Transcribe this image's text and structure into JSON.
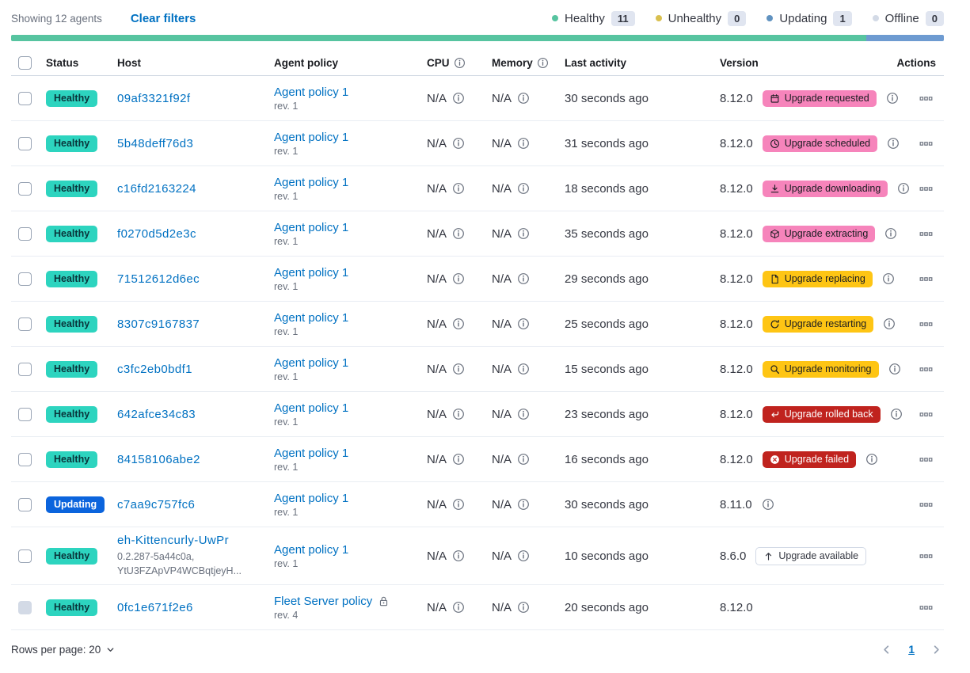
{
  "toolbar": {
    "showing": "Showing 12 agents",
    "clear_filters": "Clear filters"
  },
  "legend": {
    "items": [
      {
        "label": "Healthy",
        "count": "11",
        "color": "#57c4a0"
      },
      {
        "label": "Unhealthy",
        "count": "0",
        "color": "#d9c04f"
      },
      {
        "label": "Updating",
        "count": "1",
        "color": "#6092c0"
      },
      {
        "label": "Offline",
        "count": "0",
        "color": "#d3dae6"
      }
    ]
  },
  "status_bar": {
    "segments": [
      {
        "status": "Healthy",
        "percent": 91.67,
        "color": "#57c4a0"
      },
      {
        "status": "Updating",
        "percent": 8.33,
        "color": "#6e9bd1"
      }
    ]
  },
  "table": {
    "columns": [
      {
        "key": "checkbox",
        "label": ""
      },
      {
        "key": "status",
        "label": "Status"
      },
      {
        "key": "host",
        "label": "Host"
      },
      {
        "key": "policy",
        "label": "Agent policy"
      },
      {
        "key": "cpu",
        "label": "CPU",
        "info": true
      },
      {
        "key": "memory",
        "label": "Memory",
        "info": true
      },
      {
        "key": "last_activity",
        "label": "Last activity"
      },
      {
        "key": "version",
        "label": "Version"
      },
      {
        "key": "actions",
        "label": "Actions"
      }
    ],
    "rows": [
      {
        "status": "Healthy",
        "status_style": "healthy",
        "host": "09af3321f92f",
        "host_sub": [],
        "policy": "Agent policy 1",
        "policy_rev": "rev. 1",
        "policy_locked": false,
        "cpu": "N/A",
        "memory": "N/A",
        "last_activity": "30 seconds ago",
        "version": "8.12.0",
        "upgrade_badge": {
          "label": "Upgrade requested",
          "icon": "calendar",
          "style": "accent"
        },
        "version_info": true,
        "checkbox_disabled": false
      },
      {
        "status": "Healthy",
        "status_style": "healthy",
        "host": "5b48deff76d3",
        "host_sub": [],
        "policy": "Agent policy 1",
        "policy_rev": "rev. 1",
        "policy_locked": false,
        "cpu": "N/A",
        "memory": "N/A",
        "last_activity": "31 seconds ago",
        "version": "8.12.0",
        "upgrade_badge": {
          "label": "Upgrade scheduled",
          "icon": "clock",
          "style": "accent"
        },
        "version_info": true,
        "checkbox_disabled": false
      },
      {
        "status": "Healthy",
        "status_style": "healthy",
        "host": "c16fd2163224",
        "host_sub": [],
        "policy": "Agent policy 1",
        "policy_rev": "rev. 1",
        "policy_locked": false,
        "cpu": "N/A",
        "memory": "N/A",
        "last_activity": "18 seconds ago",
        "version": "8.12.0",
        "upgrade_badge": {
          "label": "Upgrade downloading",
          "icon": "download",
          "style": "accent"
        },
        "version_info": true,
        "checkbox_disabled": false
      },
      {
        "status": "Healthy",
        "status_style": "healthy",
        "host": "f0270d5d2e3c",
        "host_sub": [],
        "policy": "Agent policy 1",
        "policy_rev": "rev. 1",
        "policy_locked": false,
        "cpu": "N/A",
        "memory": "N/A",
        "last_activity": "35 seconds ago",
        "version": "8.12.0",
        "upgrade_badge": {
          "label": "Upgrade extracting",
          "icon": "package",
          "style": "accent"
        },
        "version_info": true,
        "checkbox_disabled": false
      },
      {
        "status": "Healthy",
        "status_style": "healthy",
        "host": "71512612d6ec",
        "host_sub": [],
        "policy": "Agent policy 1",
        "policy_rev": "rev. 1",
        "policy_locked": false,
        "cpu": "N/A",
        "memory": "N/A",
        "last_activity": "29 seconds ago",
        "version": "8.12.0",
        "upgrade_badge": {
          "label": "Upgrade replacing",
          "icon": "document",
          "style": "warning"
        },
        "version_info": true,
        "checkbox_disabled": false
      },
      {
        "status": "Healthy",
        "status_style": "healthy",
        "host": "8307c9167837",
        "host_sub": [],
        "policy": "Agent policy 1",
        "policy_rev": "rev. 1",
        "policy_locked": false,
        "cpu": "N/A",
        "memory": "N/A",
        "last_activity": "25 seconds ago",
        "version": "8.12.0",
        "upgrade_badge": {
          "label": "Upgrade restarting",
          "icon": "refresh",
          "style": "warning"
        },
        "version_info": true,
        "checkbox_disabled": false
      },
      {
        "status": "Healthy",
        "status_style": "healthy",
        "host": "c3fc2eb0bdf1",
        "host_sub": [],
        "policy": "Agent policy 1",
        "policy_rev": "rev. 1",
        "policy_locked": false,
        "cpu": "N/A",
        "memory": "N/A",
        "last_activity": "15 seconds ago",
        "version": "8.12.0",
        "upgrade_badge": {
          "label": "Upgrade monitoring",
          "icon": "inspect",
          "style": "warning"
        },
        "version_info": true,
        "checkbox_disabled": false
      },
      {
        "status": "Healthy",
        "status_style": "healthy",
        "host": "642afce34c83",
        "host_sub": [],
        "policy": "Agent policy 1",
        "policy_rev": "rev. 1",
        "policy_locked": false,
        "cpu": "N/A",
        "memory": "N/A",
        "last_activity": "23 seconds ago",
        "version": "8.12.0",
        "upgrade_badge": {
          "label": "Upgrade rolled back",
          "icon": "return",
          "style": "danger"
        },
        "version_info": true,
        "checkbox_disabled": false
      },
      {
        "status": "Healthy",
        "status_style": "healthy",
        "host": "84158106abe2",
        "host_sub": [],
        "policy": "Agent policy 1",
        "policy_rev": "rev. 1",
        "policy_locked": false,
        "cpu": "N/A",
        "memory": "N/A",
        "last_activity": "16 seconds ago",
        "version": "8.12.0",
        "upgrade_badge": {
          "label": "Upgrade failed",
          "icon": "cross-circle",
          "style": "danger"
        },
        "version_info": true,
        "checkbox_disabled": false
      },
      {
        "status": "Updating",
        "status_style": "updating",
        "host": "c7aa9c757fc6",
        "host_sub": [],
        "policy": "Agent policy 1",
        "policy_rev": "rev. 1",
        "policy_locked": false,
        "cpu": "N/A",
        "memory": "N/A",
        "last_activity": "30 seconds ago",
        "version": "8.11.0",
        "upgrade_badge": null,
        "version_info": true,
        "checkbox_disabled": false
      },
      {
        "status": "Healthy",
        "status_style": "healthy",
        "host": "eh-Kittencurly-UwPr",
        "host_sub": [
          "0.2.287-5a44c0a,",
          "YtU3FZApVP4WCBqtjeyH..."
        ],
        "policy": "Agent policy 1",
        "policy_rev": "rev. 1",
        "policy_locked": false,
        "cpu": "N/A",
        "memory": "N/A",
        "last_activity": "10 seconds ago",
        "version": "8.6.0",
        "upgrade_badge": {
          "label": "Upgrade available",
          "icon": "arrow-up",
          "style": "hollow"
        },
        "version_info": false,
        "checkbox_disabled": false
      },
      {
        "status": "Healthy",
        "status_style": "healthy",
        "host": "0fc1e671f2e6",
        "host_sub": [],
        "policy": "Fleet Server policy",
        "policy_rev": "rev. 4",
        "policy_locked": true,
        "cpu": "N/A",
        "memory": "N/A",
        "last_activity": "20 seconds ago",
        "version": "8.12.0",
        "upgrade_badge": null,
        "version_info": false,
        "checkbox_disabled": true
      }
    ]
  },
  "footer": {
    "rows_per_page": "Rows per page: 20",
    "page": "1"
  }
}
